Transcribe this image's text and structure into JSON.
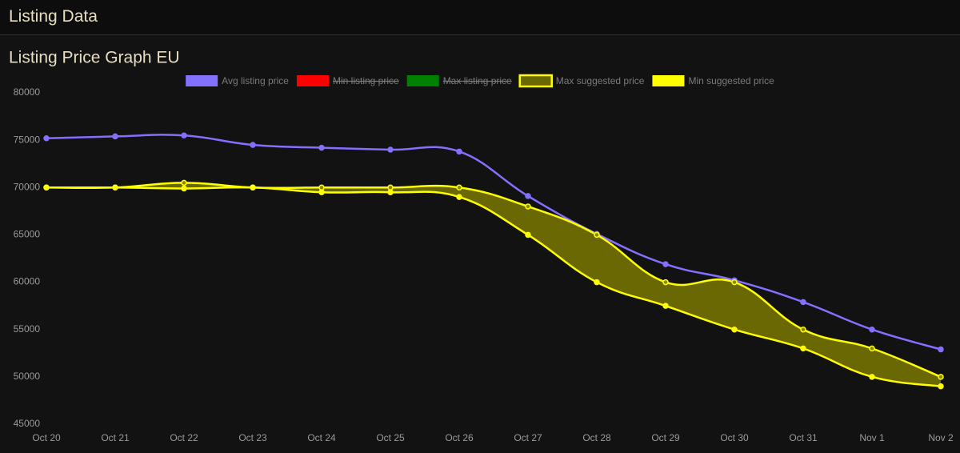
{
  "header": {
    "title": "Listing Data"
  },
  "chart_data": {
    "type": "line",
    "title": "Listing Price Graph EU",
    "categories": [
      "Oct 20",
      "Oct 21",
      "Oct 22",
      "Oct 23",
      "Oct 24",
      "Oct 25",
      "Oct 26",
      "Oct 27",
      "Oct 28",
      "Oct 29",
      "Oct 30",
      "Oct 31",
      "Nov 1",
      "Nov 2"
    ],
    "series": [
      {
        "name": "Avg listing price",
        "color": "#8470ff",
        "values": [
          75200,
          75400,
          75500,
          74500,
          74200,
          74000,
          73800,
          69100,
          65100,
          61900,
          60200,
          57900,
          55000,
          52900
        ]
      },
      {
        "name": "Min listing price",
        "color": "#ff0000",
        "hidden": true,
        "values": [
          null,
          null,
          null,
          null,
          null,
          null,
          null,
          null,
          null,
          null,
          null,
          null,
          null,
          null
        ]
      },
      {
        "name": "Max listing price",
        "color": "#008000",
        "hidden": true,
        "values": [
          null,
          null,
          null,
          null,
          null,
          null,
          null,
          null,
          null,
          null,
          null,
          null,
          null,
          null
        ]
      },
      {
        "name": "Max suggested price",
        "color": "#ffff00",
        "fill": "rgba(128,126,0,0.8)",
        "values": [
          70000,
          70000,
          70500,
          70000,
          70000,
          70000,
          70000,
          68000,
          65000,
          60000,
          60000,
          55000,
          53000,
          50000
        ]
      },
      {
        "name": "Min suggested price",
        "color": "#ffff00",
        "values": [
          70000,
          70000,
          69900,
          70000,
          69500,
          69500,
          69000,
          65000,
          60000,
          57500,
          55000,
          53000,
          50000,
          49000
        ]
      }
    ],
    "ylim": [
      45000,
      80000
    ],
    "yticks": [
      45000,
      50000,
      55000,
      60000,
      65000,
      70000,
      75000,
      80000
    ],
    "grid": false,
    "legend": "top"
  }
}
